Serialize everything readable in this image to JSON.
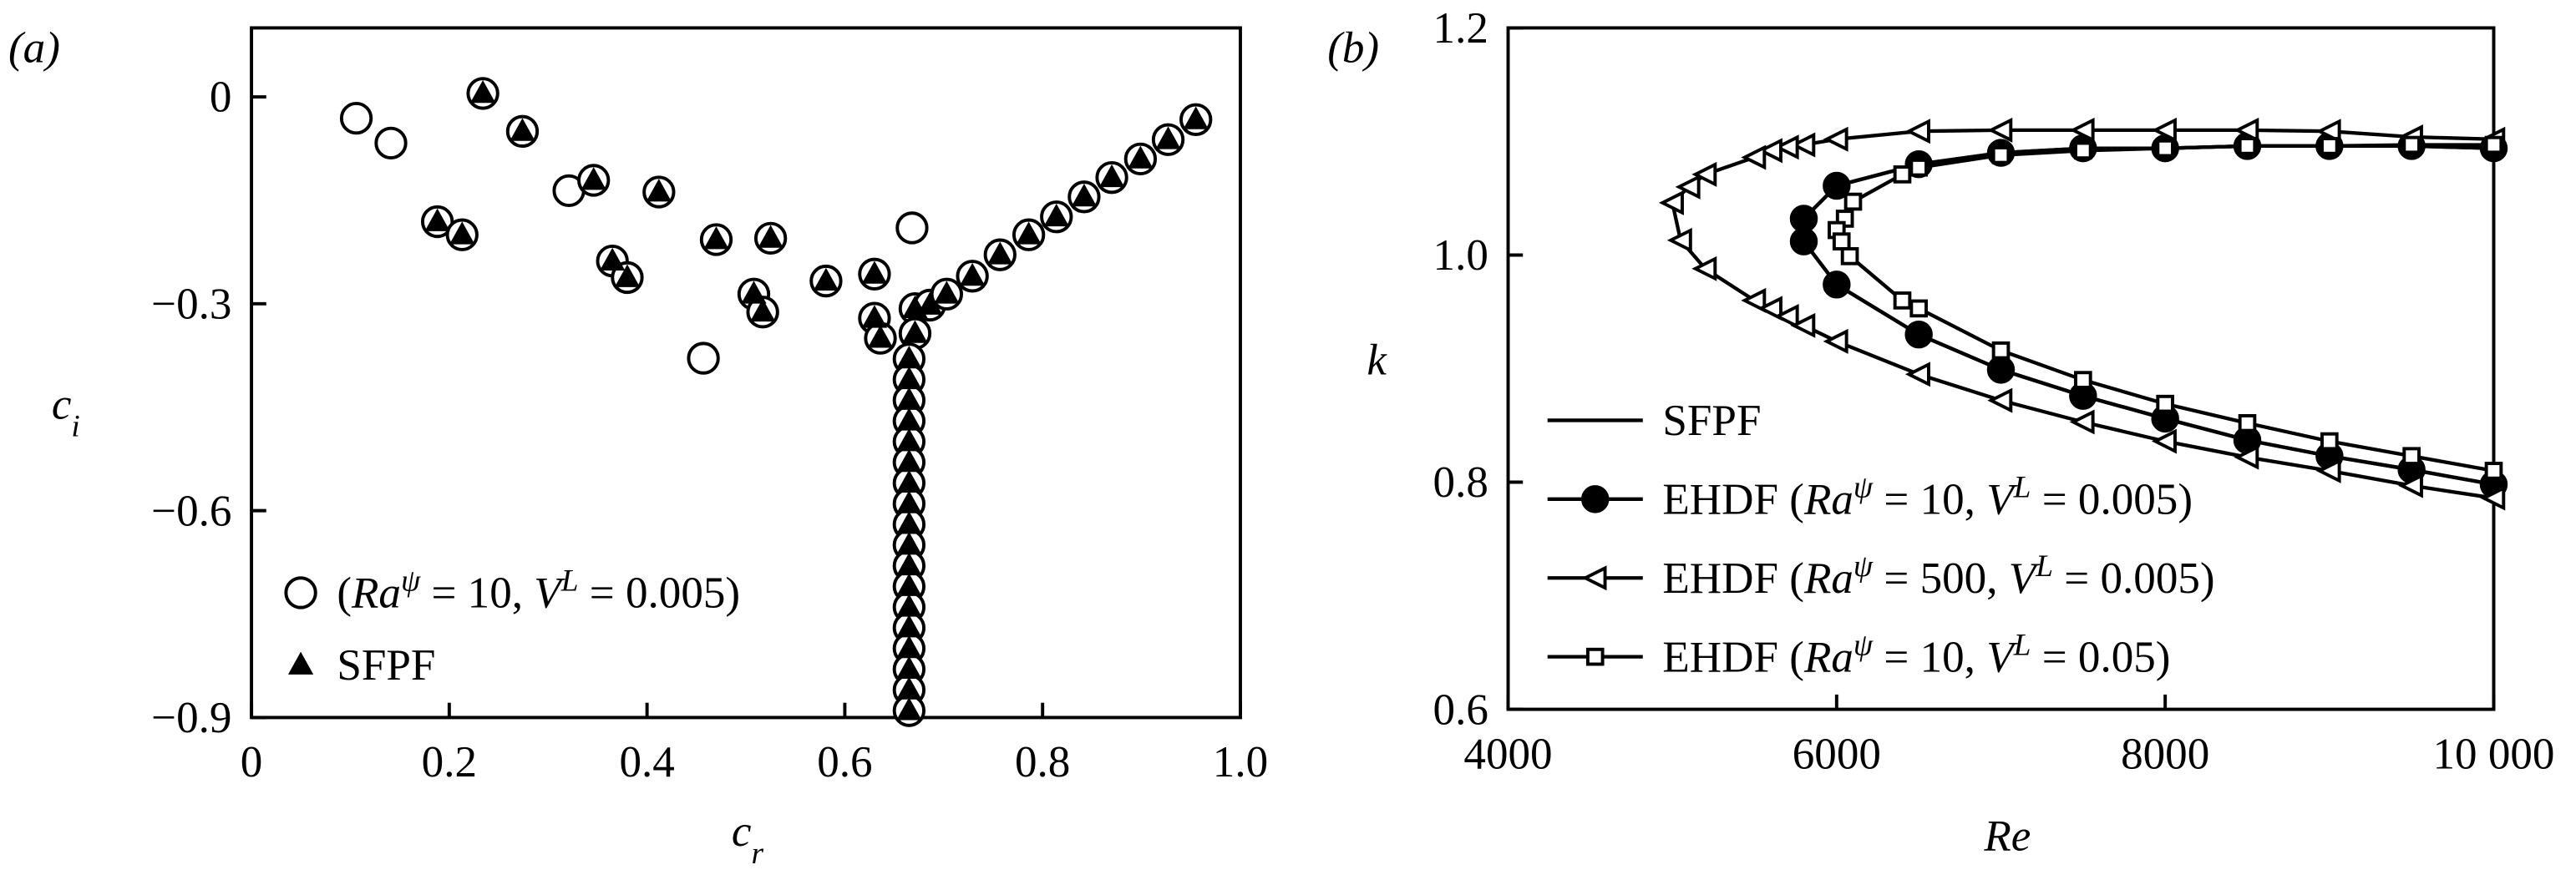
{
  "chart_data": [
    {
      "type": "scatter",
      "panel_label": "(a)",
      "xlabel": [
        {
          "text": "c",
          "style": "italic"
        },
        {
          "text": "r",
          "style": "sub-italic"
        }
      ],
      "ylabel": [
        {
          "text": "c",
          "style": "italic"
        },
        {
          "text": "i",
          "style": "sub-italic"
        }
      ],
      "xlim": [
        0,
        1
      ],
      "ylim": [
        -0.9,
        0.1
      ],
      "xticks": [
        0,
        0.2,
        0.4,
        0.6,
        0.8,
        {
          "value": 1,
          "label": "1.0"
        }
      ],
      "yticks": [
        {
          "value": -0.9,
          "label": "−0.9"
        },
        {
          "value": -0.6,
          "label": "−0.6"
        },
        {
          "value": -0.3,
          "label": "−0.3"
        },
        0
      ],
      "legend": "lower left",
      "series": [
        {
          "name": [
            {
              "text": "(",
              "style": "normal"
            },
            {
              "text": "Ra",
              "style": "italic"
            },
            {
              "text": "ψ",
              "style": "sup-italic"
            },
            {
              "text": " = 10, ",
              "style": "normal"
            },
            {
              "text": "V",
              "style": "italic"
            },
            {
              "text": "L",
              "style": "sup-italic"
            },
            {
              "text": " = 0.005)",
              "style": "normal"
            }
          ],
          "marker": "circle",
          "color": "#000",
          "fill": "#fff",
          "x": [
            0.106,
            0.141,
            0.321,
            0.457,
            0.668,
            0.234,
            0.274,
            0.188,
            0.213,
            0.346,
            0.365,
            0.38,
            0.412,
            0.47,
            0.525,
            0.508,
            0.517,
            0.581,
            0.63,
            0.63,
            0.636,
            0.671,
            0.671,
            0.686,
            0.703,
            0.729,
            0.757,
            0.786,
            0.814,
            0.842,
            0.87,
            0.899,
            0.927,
            0.955,
            0.665,
            0.665,
            0.665,
            0.665,
            0.665,
            0.665,
            0.665,
            0.665,
            0.665,
            0.665,
            0.665,
            0.665,
            0.665,
            0.665,
            0.665,
            0.665,
            0.665,
            0.665
          ],
          "values": [
            -0.031,
            -0.067,
            -0.136,
            -0.379,
            -0.19,
            0.005,
            -0.05,
            -0.181,
            -0.2,
            -0.121,
            -0.238,
            -0.262,
            -0.138,
            -0.207,
            -0.205,
            -0.286,
            -0.312,
            -0.267,
            -0.257,
            -0.321,
            -0.35,
            -0.307,
            -0.343,
            -0.302,
            -0.286,
            -0.26,
            -0.229,
            -0.2,
            -0.174,
            -0.145,
            -0.117,
            -0.09,
            -0.062,
            -0.033,
            -0.38,
            -0.41,
            -0.44,
            -0.47,
            -0.5,
            -0.53,
            -0.56,
            -0.59,
            -0.62,
            -0.65,
            -0.68,
            -0.71,
            -0.74,
            -0.77,
            -0.8,
            -0.83,
            -0.86,
            -0.89
          ]
        },
        {
          "name": [
            {
              "text": "SFPF",
              "style": "normal"
            }
          ],
          "marker": "triangle-up",
          "color": "#000",
          "fill": "#000",
          "x": [
            0.234,
            0.274,
            0.188,
            0.213,
            0.346,
            0.365,
            0.38,
            0.412,
            0.47,
            0.525,
            0.508,
            0.517,
            0.581,
            0.63,
            0.63,
            0.636,
            0.671,
            0.671,
            0.686,
            0.703,
            0.729,
            0.757,
            0.786,
            0.814,
            0.842,
            0.87,
            0.899,
            0.927,
            0.955,
            0.665,
            0.665,
            0.665,
            0.665,
            0.665,
            0.665,
            0.665,
            0.665,
            0.665,
            0.665,
            0.665,
            0.665,
            0.665,
            0.665,
            0.665,
            0.665,
            0.665,
            0.665
          ],
          "values": [
            0.005,
            -0.05,
            -0.181,
            -0.2,
            -0.121,
            -0.238,
            -0.262,
            -0.138,
            -0.207,
            -0.205,
            -0.286,
            -0.312,
            -0.267,
            -0.257,
            -0.321,
            -0.35,
            -0.307,
            -0.343,
            -0.302,
            -0.286,
            -0.26,
            -0.229,
            -0.2,
            -0.174,
            -0.145,
            -0.117,
            -0.09,
            -0.062,
            -0.033,
            -0.38,
            -0.41,
            -0.44,
            -0.47,
            -0.5,
            -0.53,
            -0.56,
            -0.59,
            -0.62,
            -0.65,
            -0.68,
            -0.71,
            -0.74,
            -0.77,
            -0.8,
            -0.83,
            -0.86,
            -0.89
          ]
        }
      ]
    },
    {
      "type": "line",
      "panel_label": "(b)",
      "xlabel": [
        {
          "text": "Re",
          "style": "italic"
        }
      ],
      "ylabel": [
        {
          "text": "k",
          "style": "italic"
        }
      ],
      "xlim": [
        4000,
        10000
      ],
      "ylim": [
        0.6,
        1.2
      ],
      "xticks": [
        4000,
        6000,
        8000,
        {
          "value": 10000,
          "label": "10 000"
        }
      ],
      "yticks": [
        0.6,
        0.8,
        {
          "value": 1,
          "label": "1.0"
        },
        1.2
      ],
      "legend": "lower left",
      "series": [
        {
          "name": [
            {
              "text": "SFPF",
              "style": "normal"
            }
          ],
          "marker": "none",
          "color": "#000",
          "fill": "#000",
          "x": [
            10000,
            9500,
            9000,
            8500,
            8000,
            7500,
            7000,
            6500,
            6000,
            5800,
            5800,
            6000,
            6500,
            7000,
            7500,
            8000,
            8500,
            9000,
            9500,
            10000
          ],
          "values": [
            1.094,
            1.096,
            1.096,
            1.096,
            1.094,
            1.094,
            1.09,
            1.08,
            1.061,
            1.032,
            1.012,
            0.974,
            0.93,
            0.899,
            0.876,
            0.856,
            0.837,
            0.823,
            0.811,
            0.798
          ]
        },
        {
          "name": [
            {
              "text": "EHDF (",
              "style": "normal"
            },
            {
              "text": "Ra",
              "style": "italic"
            },
            {
              "text": "ψ",
              "style": "sup-italic"
            },
            {
              "text": " = 10, ",
              "style": "normal"
            },
            {
              "text": "V",
              "style": "italic"
            },
            {
              "text": "L",
              "style": "sup-italic"
            },
            {
              "text": " = 0.005)",
              "style": "normal"
            }
          ],
          "marker": "circle",
          "color": "#000",
          "fill": "#000",
          "x": [
            10000,
            9500,
            9000,
            8500,
            8000,
            7500,
            7000,
            6500,
            6000,
            5800,
            5800,
            6000,
            6500,
            7000,
            7500,
            8000,
            8500,
            9000,
            9500,
            10000
          ],
          "values": [
            1.094,
            1.096,
            1.096,
            1.096,
            1.094,
            1.094,
            1.09,
            1.08,
            1.061,
            1.032,
            1.012,
            0.974,
            0.93,
            0.899,
            0.876,
            0.856,
            0.837,
            0.823,
            0.811,
            0.798
          ]
        },
        {
          "name": [
            {
              "text": "EHDF (",
              "style": "normal"
            },
            {
              "text": "Ra",
              "style": "italic"
            },
            {
              "text": "ψ",
              "style": "sup-italic"
            },
            {
              "text": " = 500, ",
              "style": "normal"
            },
            {
              "text": "V",
              "style": "italic"
            },
            {
              "text": "L",
              "style": "sup-italic"
            },
            {
              "text": " = 0.005)",
              "style": "normal"
            }
          ],
          "marker": "triangle-left",
          "color": "#000",
          "fill": "#fff",
          "x": [
            10000,
            9500,
            9000,
            8500,
            8000,
            7500,
            7000,
            6500,
            6000,
            5800,
            5700,
            5600,
            5500,
            5200,
            5100,
            5000,
            5050,
            5200,
            5500,
            5600,
            5700,
            5800,
            6000,
            6500,
            7000,
            7500,
            8000,
            8500,
            9000,
            9500,
            10000
          ],
          "values": [
            1.102,
            1.104,
            1.109,
            1.11,
            1.11,
            1.11,
            1.11,
            1.109,
            1.102,
            1.097,
            1.095,
            1.092,
            1.086,
            1.071,
            1.06,
            1.046,
            1.013,
            0.988,
            0.96,
            0.953,
            0.946,
            0.938,
            0.924,
            0.895,
            0.872,
            0.853,
            0.836,
            0.822,
            0.81,
            0.797,
            0.786
          ]
        },
        {
          "name": [
            {
              "text": "EHDF (",
              "style": "normal"
            },
            {
              "text": "Ra",
              "style": "italic"
            },
            {
              "text": "ψ",
              "style": "sup-italic"
            },
            {
              "text": " = 10, ",
              "style": "normal"
            },
            {
              "text": "V",
              "style": "italic"
            },
            {
              "text": "L",
              "style": "sup-italic"
            },
            {
              "text": " = 0.05)",
              "style": "normal"
            }
          ],
          "marker": "square",
          "color": "#000",
          "fill": "#fff",
          "x": [
            10000,
            9500,
            9000,
            8500,
            8000,
            7500,
            7000,
            6500,
            6400,
            6100,
            6050,
            6000,
            6030,
            6080,
            6400,
            6500,
            7000,
            7500,
            8000,
            8500,
            9000,
            9500,
            10000
          ],
          "values": [
            1.097,
            1.097,
            1.096,
            1.096,
            1.094,
            1.092,
            1.088,
            1.077,
            1.071,
            1.047,
            1.032,
            1.022,
            1.012,
            0.999,
            0.96,
            0.953,
            0.916,
            0.89,
            0.869,
            0.852,
            0.836,
            0.823,
            0.81
          ]
        }
      ]
    }
  ]
}
